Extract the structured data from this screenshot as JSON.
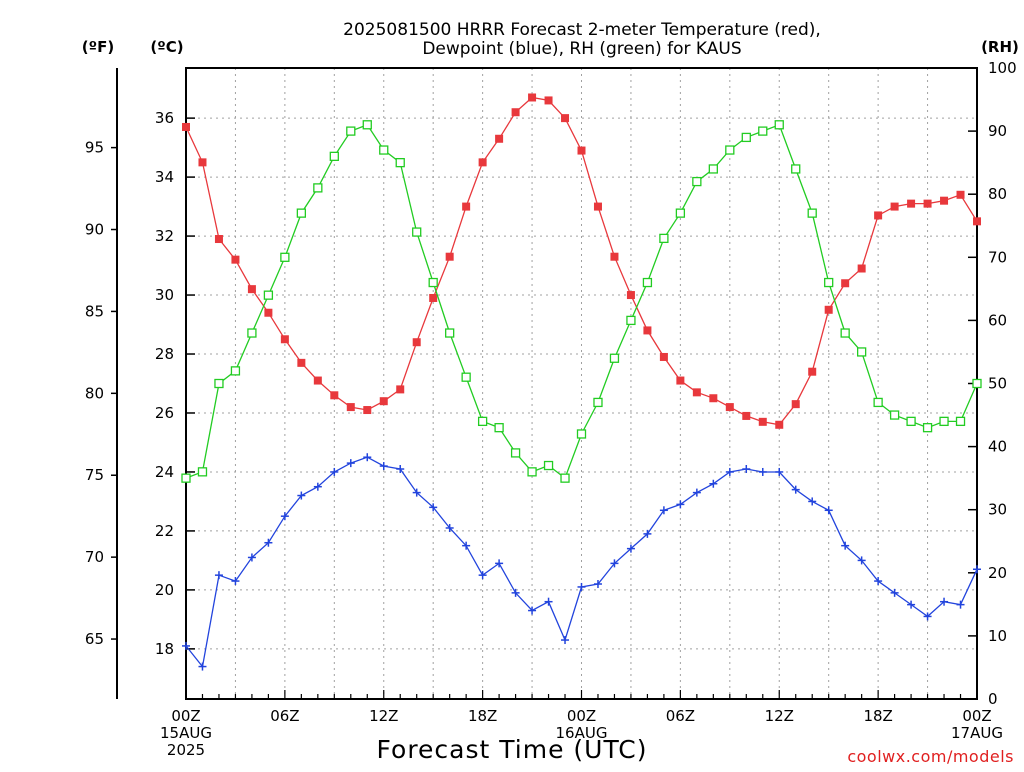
{
  "title": {
    "line1": "2025081500 HRRR Forecast 2-meter Temperature (red),",
    "line2": "Dewpoint (blue), RH (green) for KAUS"
  },
  "xlabel": "Forecast Time (UTC)",
  "credit": "coolwx.com/models",
  "units": {
    "f": "(ºF)",
    "c": "(ºC)",
    "rh": "(RH)"
  },
  "colors": {
    "temperature": "#e8383c",
    "dewpoint": "#2244dd",
    "rh": "#22cc22",
    "grid": "#a0a0a0"
  },
  "chart_data": {
    "type": "line",
    "x_unit": "forecast hour",
    "x": [
      0,
      1,
      2,
      3,
      4,
      5,
      6,
      7,
      8,
      9,
      10,
      11,
      12,
      13,
      14,
      15,
      16,
      17,
      18,
      19,
      20,
      21,
      22,
      23,
      24,
      25,
      26,
      27,
      28,
      29,
      30,
      31,
      32,
      33,
      34,
      35,
      36,
      37,
      38,
      39,
      40,
      41,
      42,
      43,
      44,
      45,
      46,
      47,
      48
    ],
    "xlim": [
      0,
      48
    ],
    "x_ticks": [
      {
        "hour": 0,
        "lines": [
          "00Z",
          "15AUG",
          "2025"
        ]
      },
      {
        "hour": 6,
        "lines": [
          "06Z"
        ]
      },
      {
        "hour": 12,
        "lines": [
          "12Z"
        ]
      },
      {
        "hour": 18,
        "lines": [
          "18Z"
        ]
      },
      {
        "hour": 24,
        "lines": [
          "00Z",
          "16AUG"
        ]
      },
      {
        "hour": 30,
        "lines": [
          "06Z"
        ]
      },
      {
        "hour": 36,
        "lines": [
          "12Z"
        ]
      },
      {
        "hour": 42,
        "lines": [
          "18Z"
        ]
      },
      {
        "hour": 48,
        "lines": [
          "00Z",
          "17AUG"
        ]
      }
    ],
    "ylim_c": [
      16.3,
      37.7
    ],
    "ylim_rh": [
      0,
      100
    ],
    "y_ticks_c": [
      "18",
      "20",
      "22",
      "24",
      "26",
      "28",
      "30",
      "32",
      "34",
      "36"
    ],
    "y_ticks_f": [
      "65",
      "70",
      "75",
      "80",
      "85",
      "90",
      "95"
    ],
    "y_ticks_rh": [
      "0",
      "10",
      "20",
      "30",
      "40",
      "50",
      "60",
      "70",
      "80",
      "90",
      "100"
    ],
    "grid": true,
    "series": [
      {
        "name": "Temperature",
        "axis": "c",
        "marker": "filled-square",
        "values": [
          35.7,
          34.5,
          31.9,
          31.2,
          30.2,
          29.4,
          28.5,
          27.7,
          27.1,
          26.6,
          26.2,
          26.1,
          26.4,
          26.8,
          28.4,
          29.9,
          31.3,
          33.0,
          34.5,
          35.3,
          36.2,
          36.7,
          36.6,
          36.0,
          34.9,
          33.0,
          31.3,
          30.0,
          28.8,
          27.9,
          27.1,
          26.7,
          26.5,
          26.2,
          25.9,
          25.7,
          25.6,
          26.3,
          27.4,
          29.5,
          30.4,
          30.9,
          32.7,
          33.0,
          33.1,
          33.1,
          33.2,
          33.4,
          32.5
        ]
      },
      {
        "name": "Dewpoint",
        "axis": "c",
        "marker": "plus",
        "values": [
          18.1,
          17.4,
          20.5,
          20.3,
          21.1,
          21.6,
          22.5,
          23.2,
          23.5,
          24.0,
          24.3,
          24.5,
          24.2,
          24.1,
          23.3,
          22.8,
          22.1,
          21.5,
          20.5,
          20.9,
          19.9,
          19.3,
          19.6,
          18.3,
          20.1,
          20.2,
          20.9,
          21.4,
          21.9,
          22.7,
          22.9,
          23.3,
          23.6,
          24.0,
          24.1,
          24.0,
          24.0,
          23.4,
          23.0,
          22.7,
          21.5,
          21.0,
          20.3,
          19.9,
          19.5,
          19.1,
          19.6,
          19.5,
          20.7
        ]
      },
      {
        "name": "RH",
        "axis": "rh",
        "marker": "open-square",
        "values": [
          35,
          36,
          50,
          52,
          58,
          64,
          70,
          77,
          81,
          86,
          90,
          91,
          87,
          85,
          74,
          66,
          58,
          51,
          44,
          43,
          39,
          36,
          37,
          35,
          42,
          47,
          54,
          60,
          66,
          73,
          77,
          82,
          84,
          87,
          89,
          90,
          91,
          84,
          77,
          66,
          58,
          55,
          47,
          45,
          44,
          43,
          44,
          44,
          50
        ]
      }
    ]
  }
}
